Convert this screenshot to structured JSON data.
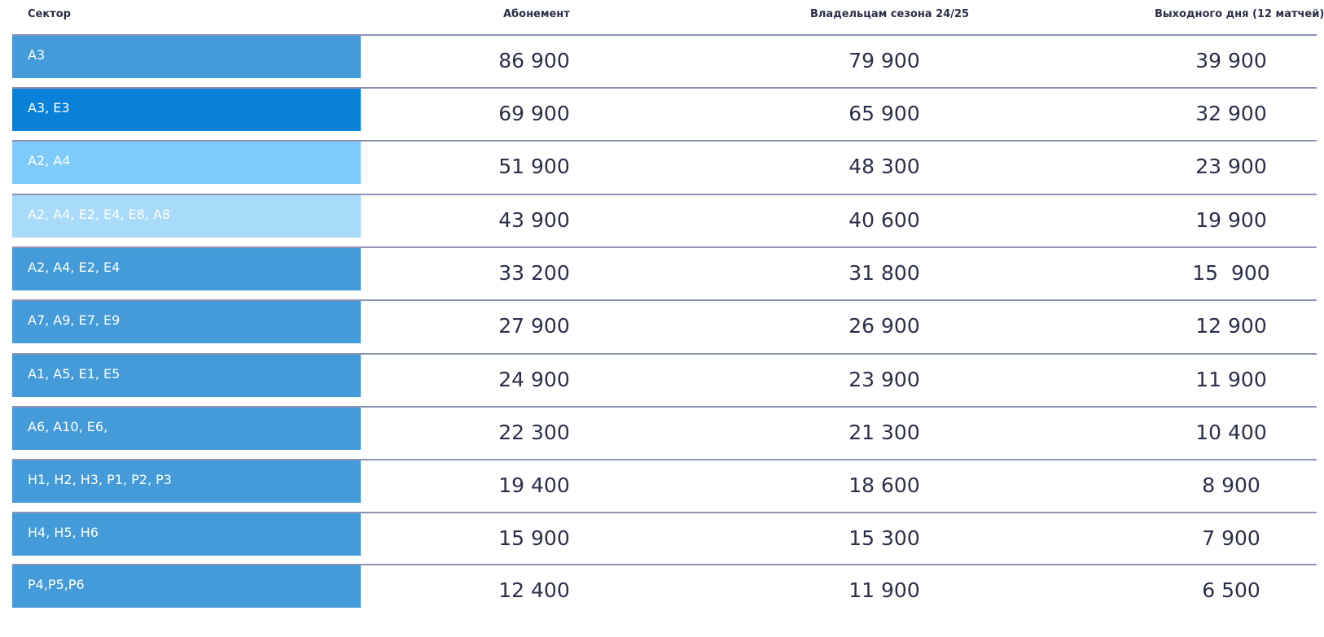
{
  "headers": {
    "sector": "Сектор",
    "col1": "Абонемент",
    "col2": "Владельцам сезона 24/25",
    "col3": "Выходного дня (12 матчей)"
  },
  "rows": [
    {
      "sector": "A3",
      "abonement": "86 900",
      "owners": "79 900",
      "weekend": "39 900",
      "color": "#449bd9"
    },
    {
      "sector": "A3, E3",
      "abonement": "69 900",
      "owners": "65 900",
      "weekend": "32 900",
      "color": "#0a80d8"
    },
    {
      "sector": "A2, A4",
      "abonement": "51 900",
      "owners": "48 300",
      "weekend": "23 900",
      "color": "#7ecbfb"
    },
    {
      "sector": "A2, A4, E2, E4, E8, A8",
      "abonement": "43 900",
      "owners": "40 600",
      "weekend": "19 900",
      "color": "#a8daf9"
    },
    {
      "sector": "A2, A4, E2, E4",
      "abonement": "33 200",
      "owners": "31 800",
      "weekend": "15  900",
      "color": "#449bd9"
    },
    {
      "sector": "A7, A9, E7, E9",
      "abonement": "27 900",
      "owners": "26 900",
      "weekend": "12 900",
      "color": "#449bd9"
    },
    {
      "sector": "A1, A5, E1, E5",
      "abonement": "24 900",
      "owners": "23 900",
      "weekend": "11 900",
      "color": "#449bd9"
    },
    {
      "sector": "A6, A10, E6,",
      "abonement": "22 300",
      "owners": "21 300",
      "weekend": "10 400",
      "color": "#449bd9"
    },
    {
      "sector": "H1, H2, H3, P1, P2, P3",
      "abonement": "19 400",
      "owners": "18 600",
      "weekend": "8 900",
      "color": "#449bd9"
    },
    {
      "sector": "H4, H5, H6",
      "abonement": "15 900",
      "owners": "15 300",
      "weekend": "7 900",
      "color": "#449bd9"
    },
    {
      "sector": "P4,P5,P6",
      "abonement": "12 400",
      "owners": "11 900",
      "weekend": "6 500",
      "color": "#449bd9"
    }
  ]
}
